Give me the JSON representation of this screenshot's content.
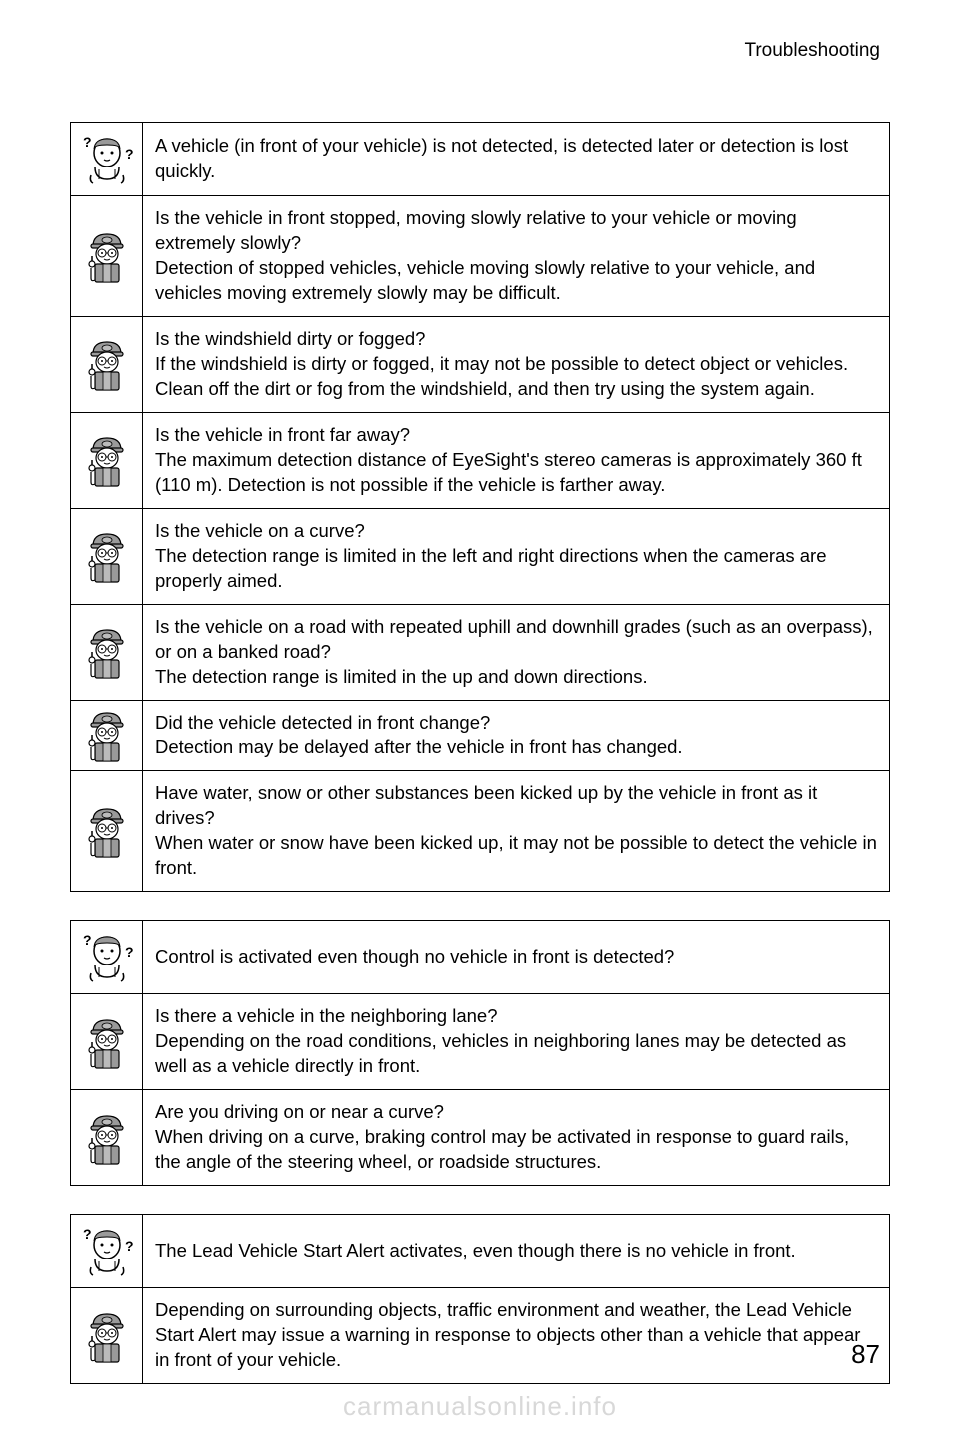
{
  "header": "Troubleshooting",
  "pageNumber": "87",
  "watermark": "carmanualsonline.info",
  "icons": {
    "question": "question-person",
    "answer": "mechanic-person"
  },
  "colors": {
    "border": "#000000",
    "text": "#000000",
    "background": "#ffffff",
    "watermark": "#d8d8d8",
    "iconGray": "#9a9a9a",
    "iconDark": "#333333"
  },
  "sections": [
    {
      "question": "A vehicle (in front of your vehicle) is not detected, is detected later or detection is lost quickly.",
      "answers": [
        "Is the vehicle in front stopped, moving slowly relative to your vehicle or moving extremely slowly?\nDetection of stopped vehicles, vehicle moving slowly relative to your vehicle, and vehicles moving extremely slowly may be difficult.",
        "Is the windshield dirty or fogged?\nIf the windshield is dirty or fogged, it may not be possible to detect object or vehicles. Clean off the dirt or fog from the windshield, and then try using the system again.",
        "Is the vehicle in front far away?\nThe maximum detection distance of EyeSight's stereo cameras is approximately 360 ft (110 m). Detection is not possible if the vehicle is farther away.",
        "Is the vehicle on a curve?\nThe detection range is limited in the left and right directions when the cameras are properly aimed.",
        "Is the vehicle on a road with repeated uphill and downhill grades (such as an overpass), or on a banked road?\nThe detection range is limited in the up and down directions.",
        "Did the vehicle detected in front change?\nDetection may be delayed after the vehicle in front has changed.",
        "Have water, snow or other substances been kicked up by the vehicle in front as it drives?\nWhen water or snow have been kicked up, it may not be possible to detect the vehicle in front."
      ]
    },
    {
      "question": "Control is activated even though no vehicle in front is detected?",
      "answers": [
        "Is there a vehicle in the neighboring lane?\nDepending on the road conditions, vehicles in neighboring lanes may be detected as well as a vehicle directly in front.",
        "Are you driving on or near a curve?\nWhen driving on a curve, braking control may be activated in response to guard rails, the angle of the steering wheel, or roadside structures."
      ]
    },
    {
      "question": "The Lead Vehicle Start Alert activates, even though there is no vehicle in front.",
      "answers": [
        "Depending on surrounding objects, traffic environment and weather, the Lead Vehicle Start Alert may issue a warning in response to objects other than a vehicle that appear in front of your vehicle."
      ]
    }
  ]
}
